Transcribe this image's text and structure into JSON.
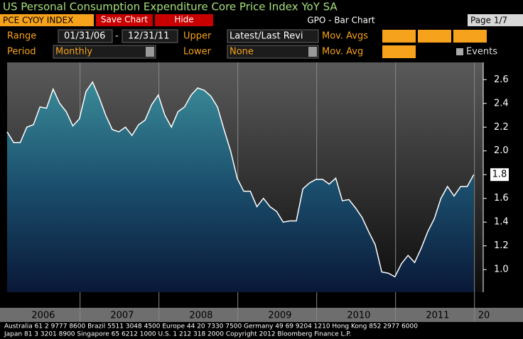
{
  "toolbar": {
    "ticker": "PCE CYOY INDEX",
    "save": "Save Chart",
    "hide": "Hide",
    "function": "GPO - Bar Chart",
    "page": "Page 1/7",
    "range_label": "Range",
    "start": "01/31/06",
    "dash": "-",
    "end": "12/31/11",
    "upper_label": "Upper",
    "upper": "Latest/Last Revi",
    "mov_avgs": "Mov. Avgs",
    "period_label": "Period",
    "period": "Monthly",
    "lower_label": "Lower",
    "lower": "None",
    "mov_avg": "Mov. Avg",
    "events": "Events"
  },
  "footer": [
    "Australia 61 2 9777 8600 Brazil 5511 3048 4500 Europe 44 20 7330 7500 Germany 49 69 9204 1210 Hong Kong 852 2977 6000",
    "Japan 81 3 3201 8900        Singapore 65 6212 1000        U.S. 1 212 318 2000              Copyright 2012 Bloomberg Finance L.P."
  ],
  "chart_data": {
    "type": "area",
    "title": "US Personal Consumption Expenditure Core Price Index YoY SA",
    "categories": [
      null,
      null,
      null,
      null,
      null,
      null,
      null,
      null,
      null,
      null,
      null,
      null,
      null,
      null,
      null,
      null,
      null,
      null,
      null,
      null,
      null,
      null,
      null,
      null,
      null,
      null,
      null,
      null,
      null,
      null,
      null,
      null,
      null,
      null,
      null,
      null,
      null,
      null,
      null,
      null,
      null,
      null,
      null,
      null,
      null,
      null,
      null,
      null,
      null,
      null,
      null,
      null,
      null,
      null,
      null,
      null,
      null,
      null,
      null,
      null,
      null,
      null,
      null,
      null,
      null,
      null,
      null,
      null,
      null,
      null,
      null,
      null
    ],
    "year_labels": [
      "2006",
      "2007",
      "2008",
      "2009",
      "2010",
      "2011",
      "20"
    ],
    "values": [
      2.16,
      2.07,
      2.07,
      2.2,
      2.22,
      2.37,
      2.36,
      2.52,
      2.4,
      2.33,
      2.21,
      2.27,
      2.5,
      2.58,
      2.45,
      2.3,
      2.18,
      2.16,
      2.2,
      2.13,
      2.22,
      2.26,
      2.39,
      2.47,
      2.3,
      2.2,
      2.33,
      2.37,
      2.47,
      2.53,
      2.51,
      2.46,
      2.37,
      2.18,
      2.0,
      1.77,
      1.66,
      1.66,
      1.53,
      1.6,
      1.53,
      1.49,
      1.4,
      1.41,
      1.41,
      1.68,
      1.73,
      1.76,
      1.76,
      1.72,
      1.77,
      1.58,
      1.59,
      1.52,
      1.44,
      1.32,
      1.21,
      0.98,
      0.97,
      0.94,
      1.05,
      1.12,
      1.06,
      1.18,
      1.32,
      1.43,
      1.6,
      1.7,
      1.62,
      1.7,
      1.7,
      1.8
    ],
    "color": "#ffffff",
    "ylim": [
      0.81,
      2.745
    ],
    "yticks": [
      {
        "value": 1,
        "label": "1.0"
      },
      1.2,
      1.4,
      1.6,
      1.8,
      {
        "value": 2,
        "label": "2.0"
      },
      2.2,
      2.4,
      2.6
    ]
  }
}
